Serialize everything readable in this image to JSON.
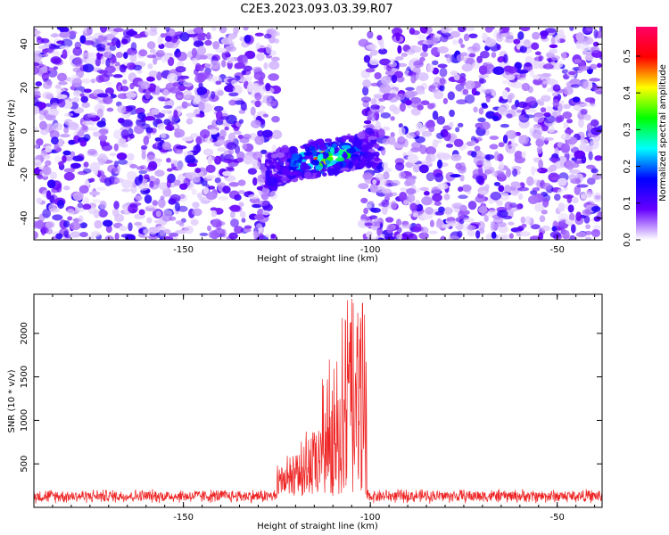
{
  "title": "C2E3.2023.093.03.39.R07",
  "chart_data": [
    {
      "type": "heatmap",
      "xlabel": "Height of straight line (km)",
      "ylabel": "Frequency (Hz)",
      "xlim": [
        -190,
        -38
      ],
      "ylim": [
        -50,
        48
      ],
      "xticks": [
        -150,
        -100,
        -50
      ],
      "yticks": [
        -40,
        -20,
        0,
        20,
        40
      ],
      "gap_x": [
        -125,
        -102
      ],
      "signal": {
        "x_range": [
          -128,
          -98
        ],
        "freq_center": -12,
        "freq_halfwidth": 8,
        "peak_x": -112,
        "peak_freq": -10
      },
      "colorbar": {
        "label": "Normalized spectral amplitude",
        "range": [
          0.0,
          0.58
        ],
        "ticks": [
          0.0,
          0.1,
          0.2,
          0.3,
          0.4,
          0.5
        ],
        "tick_labels": [
          "0.0",
          "0.1",
          "0.2",
          "0.3",
          "0.4",
          "0.5"
        ],
        "colormap": [
          "#ffffff",
          "#6600ff",
          "#0000ff",
          "#00ffff",
          "#00ff00",
          "#ffff00",
          "#ff0000",
          "#ff0066"
        ]
      }
    },
    {
      "type": "line",
      "xlabel": "Height of straight line (km)",
      "ylabel": "SNR (10 * v/v)",
      "xlim": [
        -190,
        -38
      ],
      "ylim": [
        0,
        2450
      ],
      "xticks": [
        -150,
        -100,
        -50
      ],
      "yticks": [
        500,
        1000,
        1500,
        2000
      ],
      "color": "#ee2222",
      "profile": {
        "baseline_mean": 130,
        "baseline_noise": 90,
        "segments": [
          {
            "x": [
              -125,
              -120
            ],
            "peak": 600
          },
          {
            "x": [
              -120,
              -113
            ],
            "peak": 900
          },
          {
            "x": [
              -113,
              -108
            ],
            "peak": 1700
          },
          {
            "x": [
              -108,
              -105
            ],
            "peak": 2450
          },
          {
            "x": [
              -105,
              -101
            ],
            "peak": 2400
          }
        ]
      }
    }
  ]
}
